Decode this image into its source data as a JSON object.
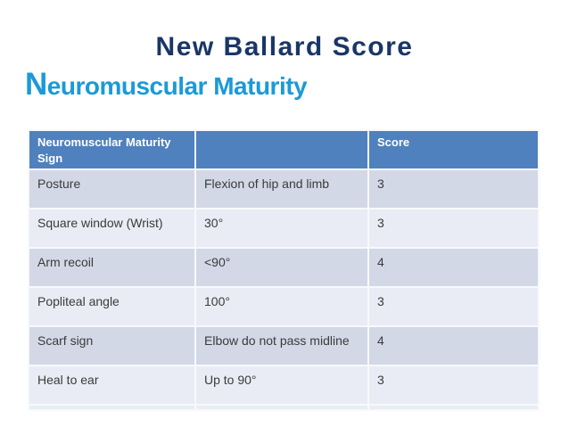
{
  "slide": {
    "title": "New Ballard Score",
    "subtitle_initial": "N",
    "subtitle_rest": "euromuscular Maturity"
  },
  "colors": {
    "title_text": "#1A3667",
    "subtitle_text": "#1B9AD7",
    "table_header_bg": "#4E81BD",
    "table_header_text": "#FFFFFF",
    "row_odd_bg": "#D2D8E6",
    "row_even_bg": "#E9ECF4",
    "body_text": "#3B3B3B"
  },
  "table": {
    "columns": [
      "Neuromuscular Maturity Sign",
      "",
      "Score"
    ],
    "rows": [
      {
        "sign": "Posture",
        "value": "Flexion of hip and limb",
        "score": "3"
      },
      {
        "sign": "Square window (Wrist)",
        "value": "30°",
        "score": "3"
      },
      {
        "sign": "Arm recoil",
        "value": "<90°",
        "score": "4"
      },
      {
        "sign": "Popliteal angle",
        "value": "100°",
        "score": "3"
      },
      {
        "sign": "Scarf sign",
        "value": "Elbow do not pass midline",
        "score": "4"
      },
      {
        "sign": "Heal to ear",
        "value": "Up to 90°",
        "score": "3"
      }
    ]
  }
}
